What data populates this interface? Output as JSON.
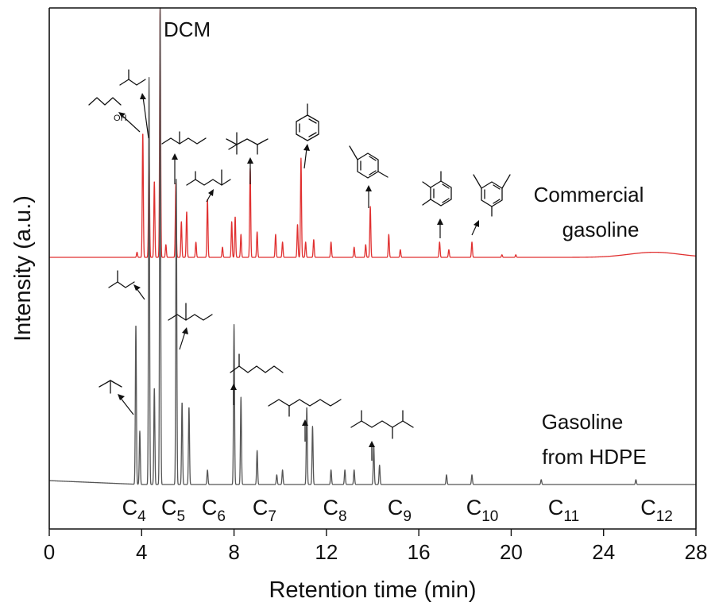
{
  "chart_data": {
    "type": "line",
    "xlabel": "Retention time (min)",
    "ylabel": "Intensity (a.u.)",
    "xlim": [
      0,
      28
    ],
    "xticks": [
      0,
      4,
      8,
      12,
      16,
      20,
      24,
      28
    ],
    "grid": false,
    "series": [
      {
        "name": "Commercial gasoline",
        "color": "#e03030",
        "baseline_level": 0.0,
        "peaks": [
          {
            "x": 3.8,
            "y": 0.02
          },
          {
            "x": 4.05,
            "y": 0.49
          },
          {
            "x": 4.32,
            "y": 0.44
          },
          {
            "x": 4.55,
            "y": 0.3
          },
          {
            "x": 4.8,
            "y": 1.0
          },
          {
            "x": 5.05,
            "y": 0.05
          },
          {
            "x": 5.48,
            "y": 0.29
          },
          {
            "x": 5.72,
            "y": 0.14
          },
          {
            "x": 5.95,
            "y": 0.18
          },
          {
            "x": 6.35,
            "y": 0.06
          },
          {
            "x": 6.85,
            "y": 0.23
          },
          {
            "x": 7.5,
            "y": 0.04
          },
          {
            "x": 7.9,
            "y": 0.14
          },
          {
            "x": 8.05,
            "y": 0.16
          },
          {
            "x": 8.3,
            "y": 0.09
          },
          {
            "x": 8.7,
            "y": 0.35
          },
          {
            "x": 9.0,
            "y": 0.1
          },
          {
            "x": 9.8,
            "y": 0.09
          },
          {
            "x": 10.1,
            "y": 0.06
          },
          {
            "x": 10.75,
            "y": 0.13
          },
          {
            "x": 10.9,
            "y": 0.39
          },
          {
            "x": 11.1,
            "y": 0.06
          },
          {
            "x": 11.45,
            "y": 0.07
          },
          {
            "x": 12.2,
            "y": 0.06
          },
          {
            "x": 13.2,
            "y": 0.04
          },
          {
            "x": 13.7,
            "y": 0.05
          },
          {
            "x": 13.9,
            "y": 0.2
          },
          {
            "x": 14.7,
            "y": 0.09
          },
          {
            "x": 15.2,
            "y": 0.03
          },
          {
            "x": 16.9,
            "y": 0.06
          },
          {
            "x": 17.3,
            "y": 0.03
          },
          {
            "x": 18.3,
            "y": 0.06
          },
          {
            "x": 19.6,
            "y": 0.01
          },
          {
            "x": 20.2,
            "y": 0.01
          }
        ],
        "hump": {
          "x": 26.2,
          "y": 0.02
        }
      },
      {
        "name": "Gasoline from HDPE",
        "color": "#555555",
        "baseline_level": 0.0,
        "peaks": [
          {
            "x": 3.75,
            "y": 0.33
          },
          {
            "x": 3.92,
            "y": 0.11
          },
          {
            "x": 4.32,
            "y": 0.84
          },
          {
            "x": 4.55,
            "y": 0.2
          },
          {
            "x": 4.8,
            "y": 1.0
          },
          {
            "x": 5.5,
            "y": 0.63
          },
          {
            "x": 5.75,
            "y": 0.17
          },
          {
            "x": 6.05,
            "y": 0.16
          },
          {
            "x": 6.85,
            "y": 0.03
          },
          {
            "x": 8.0,
            "y": 0.33
          },
          {
            "x": 8.3,
            "y": 0.18
          },
          {
            "x": 9.0,
            "y": 0.07
          },
          {
            "x": 9.85,
            "y": 0.02
          },
          {
            "x": 10.1,
            "y": 0.03
          },
          {
            "x": 11.15,
            "y": 0.16
          },
          {
            "x": 11.4,
            "y": 0.12
          },
          {
            "x": 12.2,
            "y": 0.03
          },
          {
            "x": 12.8,
            "y": 0.03
          },
          {
            "x": 13.2,
            "y": 0.03
          },
          {
            "x": 14.05,
            "y": 0.08
          },
          {
            "x": 14.3,
            "y": 0.04
          },
          {
            "x": 17.2,
            "y": 0.02
          },
          {
            "x": 18.3,
            "y": 0.02
          },
          {
            "x": 21.3,
            "y": 0.01
          },
          {
            "x": 25.4,
            "y": 0.01
          }
        ]
      }
    ],
    "annotations": {
      "dcm_label": "DCM",
      "carbon_ranges": [
        {
          "main": "C",
          "sub": "4",
          "x": 3.7
        },
        {
          "main": "C",
          "sub": "5",
          "x": 5.4
        },
        {
          "main": "C",
          "sub": "6",
          "x": 7.15
        },
        {
          "main": "C",
          "sub": "7",
          "x": 9.35
        },
        {
          "main": "C",
          "sub": "8",
          "x": 12.4
        },
        {
          "main": "C",
          "sub": "9",
          "x": 15.2
        },
        {
          "main": "C",
          "sub": "10",
          "x": 18.6
        },
        {
          "main": "C",
          "sub": "11",
          "x": 22.15
        },
        {
          "main": "C",
          "sub": "12",
          "x": 26.15
        }
      ],
      "ethanol_oh_label": "OH",
      "series_labels": [
        {
          "line1": "Commercial",
          "line2": "gasoline"
        },
        {
          "line1": "Gasoline",
          "line2": "from HDPE"
        }
      ]
    }
  }
}
